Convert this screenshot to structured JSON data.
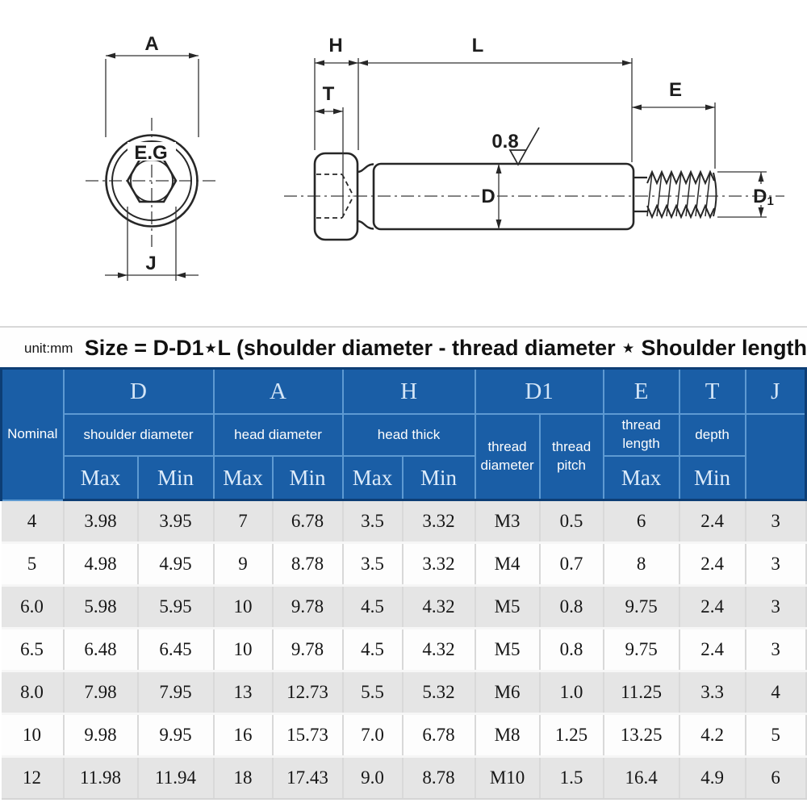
{
  "drawing": {
    "labels": {
      "A": "A",
      "J": "J",
      "EG": "E.G",
      "H": "H",
      "L": "L",
      "T": "T",
      "E": "E",
      "D": "D",
      "D1_main": "D",
      "D1_sub": "1",
      "roughness": "0.8"
    }
  },
  "title_band": {
    "unit": "unit:mm",
    "title": "Size = D-D1⋆L  (shoulder diameter - thread diameter  ⋆ Shoulder length"
  },
  "table": {
    "nominal_label": "Nominal",
    "groups": [
      {
        "letter": "D",
        "desc": "shoulder diameter",
        "cols": [
          "Max",
          "Min"
        ]
      },
      {
        "letter": "A",
        "desc": "head diameter",
        "cols": [
          "Max",
          "Min"
        ]
      },
      {
        "letter": "H",
        "desc": "head thick",
        "cols": [
          "Max",
          "Min"
        ]
      },
      {
        "letter": "D1",
        "cols": [
          "thread diameter",
          "thread pitch"
        ]
      },
      {
        "letter": "E",
        "desc": "thread length",
        "cols": [
          "Max"
        ]
      },
      {
        "letter": "T",
        "desc": "depth",
        "cols": [
          "Min"
        ]
      },
      {
        "letter": "J",
        "cols": []
      }
    ],
    "rows": [
      [
        "4",
        "3.98",
        "3.95",
        "7",
        "6.78",
        "3.5",
        "3.32",
        "M3",
        "0.5",
        "6",
        "2.4",
        "3"
      ],
      [
        "5",
        "4.98",
        "4.95",
        "9",
        "8.78",
        "3.5",
        "3.32",
        "M4",
        "0.7",
        "8",
        "2.4",
        "3"
      ],
      [
        "6.0",
        "5.98",
        "5.95",
        "10",
        "9.78",
        "4.5",
        "4.32",
        "M5",
        "0.8",
        "9.75",
        "2.4",
        "3"
      ],
      [
        "6.5",
        "6.48",
        "6.45",
        "10",
        "9.78",
        "4.5",
        "4.32",
        "M5",
        "0.8",
        "9.75",
        "2.4",
        "3"
      ],
      [
        "8.0",
        "7.98",
        "7.95",
        "13",
        "12.73",
        "5.5",
        "5.32",
        "M6",
        "1.0",
        "11.25",
        "3.3",
        "4"
      ],
      [
        "10",
        "9.98",
        "9.95",
        "16",
        "15.73",
        "7.0",
        "6.78",
        "M8",
        "1.25",
        "13.25",
        "4.2",
        "5"
      ],
      [
        "12",
        "11.98",
        "11.94",
        "18",
        "17.43",
        "9.0",
        "8.78",
        "M10",
        "1.5",
        "16.4",
        "4.9",
        "6"
      ]
    ]
  },
  "colors": {
    "header_blue": "#1a5ea6",
    "header_grid": "#5e9ad2",
    "header_outline": "#0d3e75",
    "row_gray": "#e5e5e5",
    "row_white": "#fdfdfd",
    "line_color": "#272727"
  }
}
